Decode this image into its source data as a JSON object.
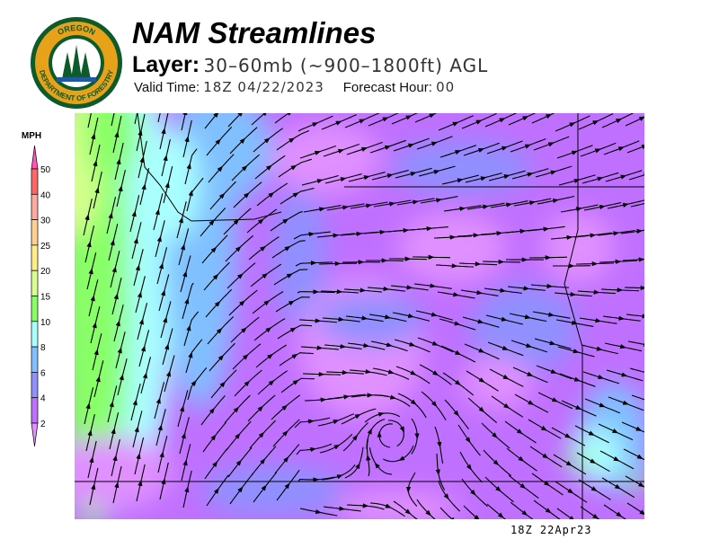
{
  "logo": {
    "text_top": "OREGON",
    "text_bottom": "DEPARTMENT OF FORESTRY"
  },
  "header": {
    "title": "NAM Streamlines",
    "layer_label": "Layer:",
    "layer_value": "30–60mb (~900–1800ft) AGL",
    "valid_label": "Valid Time:",
    "valid_value": "18Z 04/22/2023",
    "forecast_label": "Forecast Hour:",
    "forecast_value": "00"
  },
  "footer": {
    "timestamp": "18Z 22Apr23"
  },
  "chart_data": {
    "type": "heatmap",
    "title": "NAM Streamlines",
    "colorbar": {
      "unit": "MPH",
      "ticks": [
        "50",
        "40",
        "30",
        "25",
        "20",
        "15",
        "10",
        "8",
        "6",
        "4",
        "2"
      ],
      "bins": [
        {
          "range": ">50",
          "color": "#ff55bb"
        },
        {
          "range": "40-50",
          "color": "#ff6666"
        },
        {
          "range": "30-40",
          "color": "#ffaaa0"
        },
        {
          "range": "25-30",
          "color": "#ffd090"
        },
        {
          "range": "20-25",
          "color": "#ffee88"
        },
        {
          "range": "15-20",
          "color": "#d8ff90"
        },
        {
          "range": "10-15",
          "color": "#88ff66"
        },
        {
          "range": "8-10",
          "color": "#aaffff"
        },
        {
          "range": "6-8",
          "color": "#80c0ff"
        },
        {
          "range": "4-6",
          "color": "#9090ff"
        },
        {
          "range": "2-4",
          "color": "#c070ff"
        },
        {
          "range": "<2",
          "color": "#e090ff"
        }
      ]
    },
    "field": "wind speed with streamlines",
    "notable_features": [
      "stronger 10-20 mph southerly flow along the coast",
      "cyclonic circulation in south-central region",
      "mostly 2-6 mph over interior"
    ]
  }
}
